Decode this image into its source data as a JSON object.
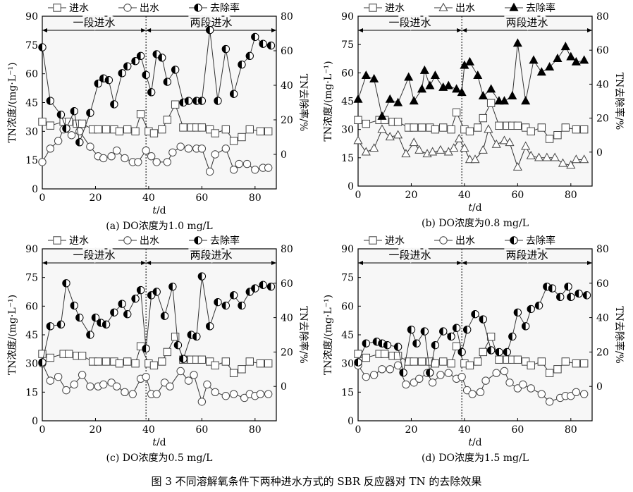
{
  "figure_caption": "图 3   不同溶解氧条件下两种进水方式的 SBR 反应器对 TN 的去除效果",
  "chart_data": [
    {
      "type": "line",
      "subcaption": "(a) DO浓度为1.0 mg/L",
      "xlabel": "t/d",
      "ylabel_left": "TN浓度/(mg·L⁻¹)",
      "ylabel_right": "TN去除率/%",
      "xlim": [
        0,
        88
      ],
      "ylim_left": [
        0,
        90
      ],
      "ylim_right": [
        -20,
        80
      ],
      "x_ticks": [
        0,
        20,
        40,
        60,
        80
      ],
      "y_ticks_left": [
        0,
        15,
        30,
        45,
        60,
        75,
        90
      ],
      "y_ticks_right": [
        0,
        20,
        40,
        60,
        80
      ],
      "legend": [
        "进水",
        "出水",
        "去除率"
      ],
      "phase_boundary_day": 39,
      "phases": [
        "一段进水",
        "两段进水"
      ],
      "series": [
        {
          "name": "进水",
          "axis": "left",
          "marker": "square",
          "x": [
            0,
            3,
            8,
            10,
            13,
            15,
            19,
            21,
            24,
            27,
            29,
            32,
            35,
            37,
            40,
            42,
            45,
            47,
            50,
            53,
            56,
            58,
            60,
            63,
            65,
            69,
            72,
            75,
            78,
            82,
            85
          ],
          "y": [
            35,
            33,
            35,
            35,
            34,
            34,
            31,
            31,
            31,
            31,
            30,
            31,
            30,
            39,
            30,
            29,
            31,
            36,
            44,
            32,
            32,
            32,
            32,
            31,
            29,
            31,
            25,
            27,
            31,
            30,
            30
          ]
        },
        {
          "name": "出水",
          "axis": "left",
          "marker": "circle",
          "x": [
            0,
            3,
            6,
            8,
            11,
            14,
            18,
            21,
            23,
            26,
            28,
            31,
            34,
            36,
            39,
            41,
            43,
            47,
            49,
            52,
            55,
            58,
            60,
            63,
            65,
            69,
            72,
            74,
            77,
            80,
            83,
            85
          ],
          "y": [
            14,
            21,
            25,
            31,
            28,
            30,
            22,
            17,
            16,
            17,
            20,
            16,
            14,
            14,
            20,
            17,
            14,
            14,
            19,
            22,
            21,
            21,
            21,
            9,
            18,
            21,
            10,
            13,
            13,
            10,
            11,
            11
          ]
        },
        {
          "name": "去除率",
          "axis": "right",
          "marker": "half",
          "x": [
            0,
            3,
            7,
            9,
            12,
            14,
            18,
            21,
            23,
            25,
            27,
            30,
            32,
            35,
            37,
            39,
            41,
            43,
            45,
            47,
            50,
            53,
            55,
            58,
            60,
            63,
            66,
            69,
            72,
            75,
            78,
            80,
            83,
            86
          ],
          "y": [
            62,
            31,
            23,
            15,
            25,
            7,
            24,
            41,
            44,
            43,
            29,
            47,
            51,
            54,
            57,
            46,
            36,
            58,
            56,
            42,
            49,
            30,
            31,
            31,
            31,
            72,
            31,
            61,
            35,
            52,
            57,
            68,
            64,
            63
          ]
        }
      ]
    },
    {
      "type": "line",
      "subcaption": "(b) DO浓度为0.8 mg/L",
      "xlabel": "t/d",
      "ylabel_left": "TN浓度/(mg·L⁻¹)",
      "ylabel_right": "TN去除率/%",
      "xlim": [
        0,
        88
      ],
      "ylim_left": [
        0,
        90
      ],
      "ylim_right": [
        -20,
        80
      ],
      "x_ticks": [
        0,
        20,
        40,
        60,
        80
      ],
      "y_ticks_left": [
        0,
        15,
        30,
        45,
        60,
        75,
        90
      ],
      "y_ticks_right": [
        0,
        20,
        40,
        60,
        80
      ],
      "legend": [
        "进水",
        "出水",
        "去除率"
      ],
      "phase_boundary_day": 39,
      "phases": [
        "一段进水",
        "两段进水"
      ],
      "series": [
        {
          "name": "进水",
          "axis": "left",
          "marker": "square",
          "x": [
            0,
            3,
            8,
            10,
            13,
            15,
            19,
            21,
            24,
            27,
            29,
            32,
            35,
            37,
            40,
            42,
            45,
            47,
            50,
            53,
            56,
            58,
            60,
            63,
            65,
            69,
            72,
            75,
            78,
            82,
            85
          ],
          "y": [
            35,
            33,
            35,
            35,
            34,
            34,
            31,
            31,
            31,
            31,
            30,
            31,
            30,
            39,
            30,
            29,
            31,
            36,
            44,
            32,
            32,
            32,
            32,
            31,
            29,
            31,
            25,
            27,
            31,
            30,
            30
          ]
        },
        {
          "name": "出水",
          "axis": "left",
          "marker": "triangle",
          "x": [
            0,
            3,
            6,
            9,
            12,
            15,
            18,
            21,
            23,
            26,
            28,
            31,
            34,
            36,
            38,
            40,
            42,
            44,
            47,
            49,
            52,
            55,
            57,
            60,
            63,
            65,
            68,
            71,
            74,
            77,
            80,
            82,
            85
          ],
          "y": [
            24,
            18,
            20,
            30,
            26,
            27,
            17,
            23,
            19,
            17,
            18,
            19,
            18,
            20,
            25,
            20,
            14,
            14,
            19,
            30,
            22,
            24,
            23,
            10,
            21,
            16,
            15,
            15,
            15,
            12,
            11,
            14,
            14
          ]
        },
        {
          "name": "去除率",
          "axis": "right",
          "marker": "triangle-filled",
          "x": [
            0,
            3,
            6,
            9,
            12,
            15,
            19,
            21,
            24,
            25,
            27,
            29,
            32,
            34,
            37,
            39,
            40,
            42,
            45,
            47,
            50,
            53,
            55,
            58,
            60,
            63,
            66,
            69,
            72,
            75,
            78,
            80,
            82,
            85
          ],
          "y": [
            31,
            45,
            43,
            21,
            31,
            29,
            44,
            30,
            37,
            48,
            39,
            45,
            38,
            39,
            37,
            35,
            51,
            53,
            45,
            33,
            37,
            30,
            30,
            33,
            64,
            30,
            54,
            47,
            50,
            55,
            62,
            56,
            53,
            54
          ]
        }
      ]
    },
    {
      "type": "line",
      "subcaption": "(c) DO浓度为0.5 mg/L",
      "xlabel": "t/d",
      "ylabel_left": "TN浓度/(mg·L⁻¹)",
      "ylabel_right": "TN去除率/%",
      "xlim": [
        0,
        88
      ],
      "ylim_left": [
        0,
        90
      ],
      "ylim_right": [
        -20,
        80
      ],
      "x_ticks": [
        0,
        20,
        40,
        60,
        80
      ],
      "y_ticks_left": [
        0,
        15,
        30,
        45,
        60,
        75,
        90
      ],
      "y_ticks_right": [
        0,
        20,
        40,
        60,
        80
      ],
      "legend": [
        "进水",
        "出水",
        "去除率"
      ],
      "phase_boundary_day": 39,
      "phases": [
        "一段进水",
        "两段进水"
      ],
      "series": [
        {
          "name": "进水",
          "axis": "left",
          "marker": "square",
          "x": [
            0,
            3,
            8,
            10,
            13,
            15,
            19,
            21,
            24,
            27,
            29,
            32,
            35,
            37,
            40,
            42,
            45,
            47,
            50,
            53,
            56,
            58,
            60,
            63,
            65,
            69,
            72,
            75,
            78,
            82,
            85
          ],
          "y": [
            35,
            33,
            35,
            35,
            34,
            34,
            31,
            31,
            31,
            31,
            30,
            31,
            30,
            39,
            30,
            29,
            31,
            36,
            44,
            32,
            32,
            32,
            32,
            31,
            29,
            31,
            25,
            27,
            31,
            30,
            30
          ]
        },
        {
          "name": "出水",
          "axis": "left",
          "marker": "circle",
          "x": [
            0,
            3,
            6,
            9,
            12,
            15,
            18,
            21,
            23,
            26,
            28,
            31,
            34,
            37,
            39,
            41,
            43,
            46,
            48,
            52,
            55,
            57,
            60,
            62,
            65,
            69,
            72,
            76,
            78,
            80,
            82,
            85
          ],
          "y": [
            30,
            21,
            23,
            16,
            19,
            24,
            18,
            18,
            19,
            20,
            18,
            15,
            14,
            22,
            23,
            14,
            14,
            20,
            18,
            26,
            21,
            24,
            10,
            19,
            15,
            13,
            14,
            12,
            14,
            13,
            14,
            14
          ]
        },
        {
          "name": "去除率",
          "axis": "right",
          "marker": "half",
          "x": [
            0,
            3,
            7,
            9,
            12,
            14,
            18,
            20,
            22,
            24,
            27,
            30,
            32,
            35,
            37,
            39,
            41,
            43,
            46,
            49,
            51,
            53,
            56,
            58,
            60,
            63,
            66,
            69,
            72,
            75,
            78,
            80,
            83,
            86
          ],
          "y": [
            14,
            35,
            36,
            60,
            47,
            40,
            30,
            40,
            37,
            36,
            43,
            48,
            42,
            51,
            56,
            22,
            53,
            55,
            41,
            58,
            24,
            16,
            30,
            29,
            64,
            35,
            49,
            47,
            53,
            47,
            55,
            57,
            59,
            58
          ]
        }
      ]
    },
    {
      "type": "line",
      "subcaption": "(d) DO浓度为1.5 mg/L",
      "xlabel": "t/d",
      "ylabel_left": "TN浓度/(mg·L⁻¹)",
      "ylabel_right": "TN去除率/%",
      "xlim": [
        0,
        88
      ],
      "ylim_left": [
        0,
        90
      ],
      "ylim_right": [
        -20,
        80
      ],
      "x_ticks": [
        0,
        20,
        40,
        60,
        80
      ],
      "y_ticks_left": [
        0,
        15,
        30,
        45,
        60,
        75,
        90
      ],
      "y_ticks_right": [
        0,
        20,
        40,
        60,
        80
      ],
      "legend": [
        "进水",
        "出水",
        "去除率"
      ],
      "phase_boundary_day": 39,
      "phases": [
        "一段进水",
        "两段进水"
      ],
      "series": [
        {
          "name": "进水",
          "axis": "left",
          "marker": "square",
          "x": [
            0,
            3,
            8,
            10,
            13,
            15,
            19,
            21,
            24,
            27,
            29,
            32,
            35,
            37,
            40,
            42,
            45,
            47,
            50,
            53,
            56,
            58,
            60,
            63,
            65,
            69,
            72,
            75,
            78,
            82,
            85
          ],
          "y": [
            35,
            33,
            35,
            35,
            34,
            34,
            31,
            31,
            31,
            31,
            30,
            31,
            30,
            39,
            30,
            29,
            31,
            36,
            44,
            32,
            32,
            32,
            32,
            31,
            29,
            31,
            25,
            27,
            31,
            30,
            30
          ]
        },
        {
          "name": "出水",
          "axis": "left",
          "marker": "circle",
          "x": [
            0,
            3,
            6,
            9,
            12,
            15,
            18,
            21,
            23,
            26,
            28,
            31,
            34,
            37,
            39,
            41,
            43,
            46,
            48,
            52,
            55,
            57,
            60,
            62,
            65,
            69,
            72,
            76,
            78,
            80,
            82,
            85
          ],
          "y": [
            29,
            23,
            24,
            27,
            27,
            29,
            19,
            20,
            22,
            25,
            20,
            24,
            25,
            22,
            23,
            16,
            14,
            15,
            21,
            25,
            26,
            20,
            17,
            19,
            17,
            14,
            10,
            12,
            13,
            13,
            15,
            14
          ]
        },
        {
          "name": "去除率",
          "axis": "right",
          "marker": "half",
          "x": [
            0,
            3,
            7,
            9,
            11,
            15,
            17,
            20,
            22,
            25,
            27,
            29,
            32,
            35,
            37,
            39,
            41,
            44,
            47,
            50,
            53,
            56,
            58,
            60,
            63,
            65,
            68,
            71,
            73,
            76,
            79,
            80,
            83,
            86
          ],
          "y": [
            14,
            25,
            26,
            25,
            24,
            23,
            8,
            33,
            25,
            32,
            8,
            24,
            32,
            29,
            34,
            20,
            33,
            42,
            39,
            21,
            20,
            20,
            29,
            43,
            35,
            45,
            47,
            58,
            57,
            52,
            58,
            52,
            54,
            53
          ]
        }
      ]
    }
  ]
}
